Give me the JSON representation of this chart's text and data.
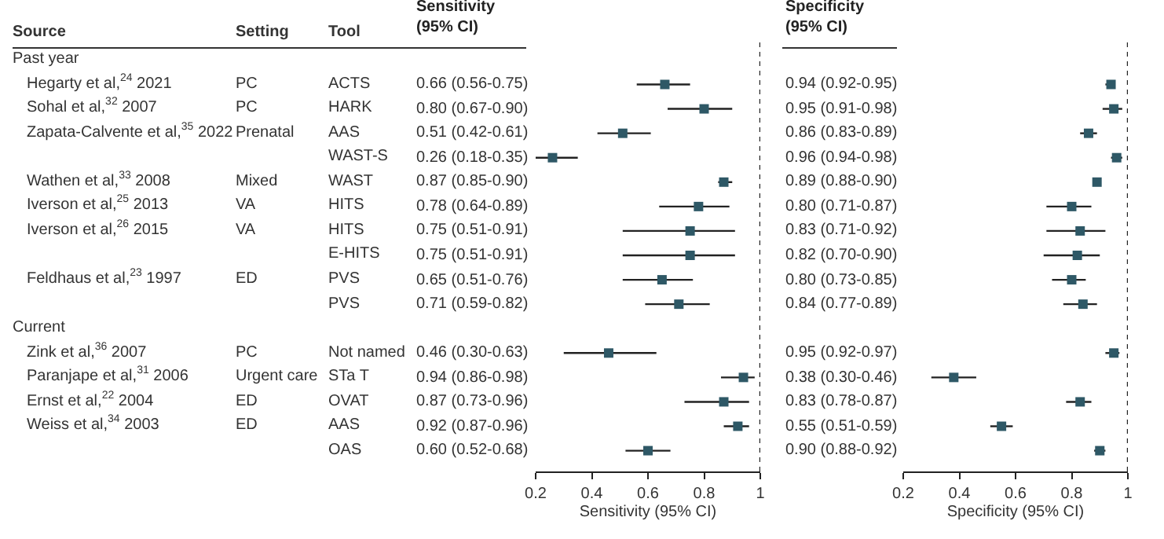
{
  "chart_data": [
    {
      "type": "other",
      "annotations": [
        "Source",
        "Setting",
        "Tool",
        "Past year",
        "Hegarty et al,$^{24}$ 2021",
        "PC",
        "ACTS",
        "Sohal et al,$^{32}$ 2007",
        "PC",
        "HARK",
        "Zapata-Calvente et al,$^{35}$ 2022",
        "Prenatal",
        "AAS",
        "WAST-S",
        "Wathen et al,$^{33}$ 2008",
        "Mixed",
        "WAST",
        "Iverson et al,$^{25}$ 2013",
        "VA",
        "HITS",
        "Iverson et al,$^{26}$ 2015",
        "VA",
        "HITS",
        "E-HITS",
        "Feldhaus et al,$^{23}$ 1997",
        "ED",
        "PVS",
        "PVS",
        "Current",
        "Zink et al,$^{36}$ 2007",
        "PC",
        "Not named",
        "Paranjape et al,$^{31}$ 2006",
        "Urgent care",
        "STa T",
        "Ernst et al,$^{22}$ 2004",
        "ED",
        "OVAT",
        "Weiss et al,$^{34}$ 2003",
        "ED",
        "AAS",
        "OAS"
      ]
    },
    {
      "type": "scatter",
      "orientation": "horizontal",
      "title": "Sensitivity\n(95% CI)",
      "xlabel": "Sensitivity (95% CI)",
      "marker": "square",
      "color": "#2e5866",
      "categories": [
        null,
        null,
        null,
        null,
        null,
        null,
        null,
        null,
        null,
        null,
        null,
        null,
        null,
        null,
        null,
        null,
        null
      ],
      "values": [
        null,
        0.66,
        0.8,
        0.51,
        0.26,
        0.87,
        0.78,
        0.75,
        0.75,
        0.65,
        0.71,
        null,
        0.46,
        0.94,
        0.87,
        0.92,
        0.6
      ],
      "errors": [
        null,
        [
          0.56,
          0.75
        ],
        [
          0.67,
          0.9
        ],
        [
          0.42,
          0.61
        ],
        [
          0.18,
          0.35
        ],
        [
          0.85,
          0.9
        ],
        [
          0.64,
          0.89
        ],
        [
          0.51,
          0.91
        ],
        [
          0.51,
          0.91
        ],
        [
          0.51,
          0.76
        ],
        [
          0.59,
          0.82
        ],
        null,
        [
          0.3,
          0.63
        ],
        [
          0.86,
          0.98
        ],
        [
          0.73,
          0.96
        ],
        [
          0.87,
          0.96
        ],
        [
          0.52,
          0.68
        ]
      ],
      "value_labels": [
        null,
        "0.66 (0.56-0.75)",
        "0.80 (0.67-0.90)",
        "0.51 (0.42-0.61)",
        "0.26 (0.18-0.35)",
        "0.87 (0.85-0.90)",
        "0.78 (0.64-0.89)",
        "0.75 (0.51-0.91)",
        "0.75 (0.51-0.91)",
        "0.65 (0.51-0.76)",
        "0.71 (0.59-0.82)",
        null,
        "0.46 (0.30-0.63)",
        "0.94 (0.86-0.98)",
        "0.87 (0.73-0.96)",
        "0.92 (0.87-0.96)",
        "0.60 (0.52-0.68)"
      ],
      "xlim": [
        0.2,
        1
      ],
      "xticks": [
        0.2,
        0.4,
        0.6,
        0.8,
        1
      ],
      "ref_lines": [
        {
          "axis": "x",
          "value": 1,
          "line_style": "dotted"
        }
      ]
    },
    {
      "type": "scatter",
      "orientation": "horizontal",
      "title": "Specificity\n(95% CI)",
      "xlabel": "Specificity (95% CI)",
      "marker": "square",
      "color": "#2e5866",
      "categories": [
        null,
        null,
        null,
        null,
        null,
        null,
        null,
        null,
        null,
        null,
        null,
        null,
        null,
        null,
        null,
        null,
        null
      ],
      "values": [
        null,
        0.94,
        0.95,
        0.86,
        0.96,
        0.89,
        0.8,
        0.83,
        0.82,
        0.8,
        0.84,
        null,
        0.95,
        0.38,
        0.83,
        0.55,
        0.9
      ],
      "errors": [
        null,
        [
          0.92,
          0.95
        ],
        [
          0.91,
          0.98
        ],
        [
          0.83,
          0.89
        ],
        [
          0.94,
          0.98
        ],
        [
          0.88,
          0.9
        ],
        [
          0.71,
          0.87
        ],
        [
          0.71,
          0.92
        ],
        [
          0.7,
          0.9
        ],
        [
          0.73,
          0.85
        ],
        [
          0.77,
          0.89
        ],
        null,
        [
          0.92,
          0.97
        ],
        [
          0.3,
          0.46
        ],
        [
          0.78,
          0.87
        ],
        [
          0.51,
          0.59
        ],
        [
          0.88,
          0.92
        ]
      ],
      "value_labels": [
        null,
        "0.94 (0.92-0.95)",
        "0.95 (0.91-0.98)",
        "0.86 (0.83-0.89)",
        "0.96 (0.94-0.98)",
        "0.89 (0.88-0.90)",
        "0.80 (0.71-0.87)",
        "0.83 (0.71-0.92)",
        "0.82 (0.70-0.90)",
        "0.80 (0.73-0.85)",
        "0.84 (0.77-0.89)",
        null,
        "0.95 (0.92-0.97)",
        "0.38 (0.30-0.46)",
        "0.83 (0.78-0.87)",
        "0.55 (0.51-0.59)",
        "0.90 (0.88-0.92)"
      ],
      "xlim": [
        0.2,
        1
      ],
      "xticks": [
        0.2,
        0.4,
        0.6,
        0.8,
        1
      ],
      "ref_lines": [
        {
          "axis": "x",
          "value": 1,
          "line_style": "dotted"
        }
      ]
    }
  ]
}
